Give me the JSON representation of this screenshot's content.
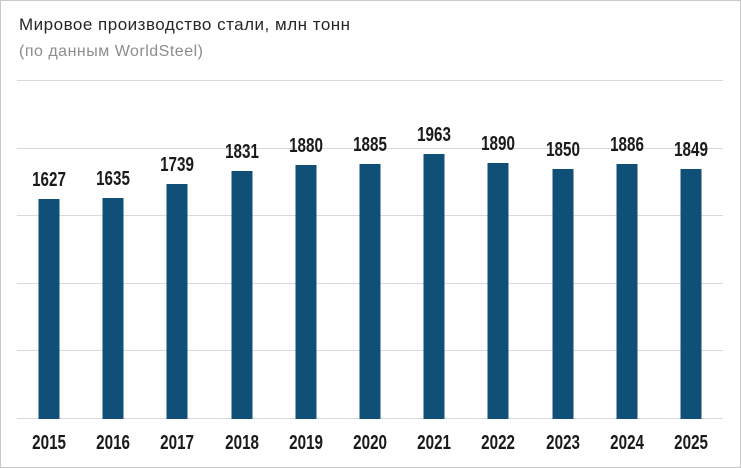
{
  "header": {
    "title": "Мировое производство стали, млн тонн",
    "subtitle": "(по данным WorldSteel)"
  },
  "chart_data": {
    "type": "bar",
    "title": "Мировое производство стали, млн тонн",
    "subtitle": "(по данным WorldSteel)",
    "categories": [
      "2015",
      "2016",
      "2017",
      "2018",
      "2019",
      "2020",
      "2021",
      "2022",
      "2023",
      "2024",
      "2025"
    ],
    "values": [
      1627,
      1635,
      1739,
      1831,
      1880,
      1885,
      1963,
      1890,
      1850,
      1886,
      1849
    ],
    "xlabel": "",
    "ylabel": "",
    "ylim": [
      0,
      2500
    ],
    "gridline_step": 500,
    "grid": true,
    "legend": "none",
    "data_labels": true,
    "bar_color": "#104F78",
    "gridline_color": "#D9D9D9",
    "value_label_color": "#1A1A1A",
    "title_color": "#262626",
    "subtitle_color": "#8C8C8C",
    "frame_border_color": "#C9C9C9"
  }
}
